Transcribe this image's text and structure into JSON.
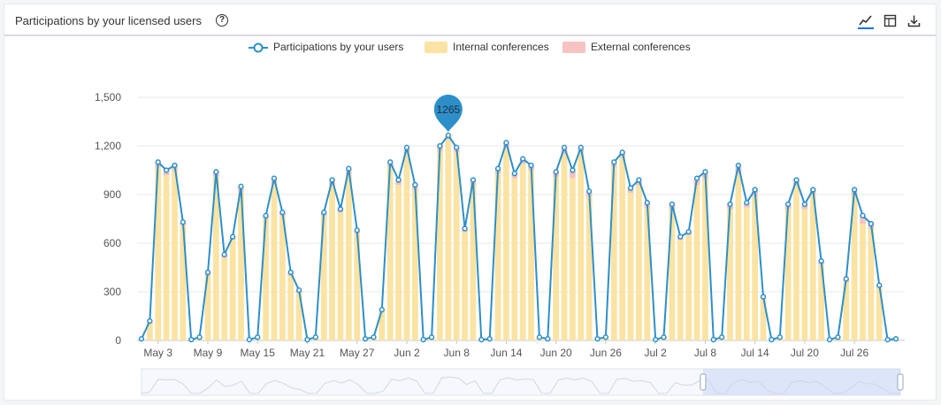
{
  "header": {
    "title": "Participations by your licensed users",
    "help_glyph": "?",
    "tools": [
      "line-chart-icon",
      "table-view-icon",
      "download-icon"
    ]
  },
  "colors": {
    "line": "#2d8fc9",
    "internal": "#fbe3a3",
    "external": "#f7c2c2",
    "grid": "#e6e8eb",
    "tooltip": "#2d8fc9",
    "zoom": "#c9d6f7"
  },
  "tooltip": {
    "value": "1265"
  },
  "zoom_window": {
    "start_fraction": 0.74,
    "end_fraction": 1.0
  },
  "chart_data": {
    "type": "bar",
    "title": "Participations by your licensed users",
    "ylim": [
      0,
      1500
    ],
    "yticks": [
      "0",
      "300",
      "600",
      "900",
      "1,200",
      "1,500"
    ],
    "grid": true,
    "legend_position": "top-center",
    "x_tick_labels": [
      "May 3",
      "May 9",
      "May 15",
      "May 21",
      "May 27",
      "Jun 2",
      "Jun 8",
      "Jun 14",
      "Jun 20",
      "Jun 26",
      "Jul 2",
      "Jul 8",
      "Jul 14",
      "Jul 20",
      "Jul 26"
    ],
    "x_tick_index": [
      2,
      8,
      14,
      20,
      26,
      32,
      38,
      44,
      50,
      56,
      62,
      68,
      74,
      80,
      86
    ],
    "series": [
      {
        "name": "Participations by your users",
        "type": "line",
        "values": [
          10,
          120,
          1100,
          1050,
          1080,
          730,
          5,
          20,
          420,
          1040,
          530,
          640,
          950,
          5,
          20,
          770,
          1000,
          790,
          420,
          310,
          5,
          20,
          790,
          990,
          810,
          1060,
          680,
          10,
          20,
          190,
          1100,
          990,
          1190,
          960,
          5,
          20,
          1200,
          1265,
          1190,
          690,
          990,
          5,
          10,
          1060,
          1220,
          1030,
          1120,
          1080,
          20,
          10,
          1040,
          1190,
          1050,
          1190,
          920,
          10,
          20,
          1100,
          1160,
          940,
          990,
          850,
          5,
          20,
          840,
          640,
          670,
          1000,
          1040,
          5,
          20,
          840,
          1080,
          850,
          930,
          270,
          5,
          20,
          840,
          990,
          840,
          930,
          490,
          5,
          20,
          380,
          930,
          770,
          720,
          340,
          5,
          10
        ]
      },
      {
        "name": "Internal conferences",
        "type": "bar",
        "values": [
          5,
          105,
          1070,
          1020,
          1050,
          710,
          3,
          15,
          400,
          1010,
          510,
          620,
          920,
          3,
          15,
          750,
          970,
          770,
          400,
          295,
          3,
          15,
          770,
          960,
          790,
          1030,
          660,
          8,
          15,
          180,
          1070,
          960,
          1160,
          930,
          3,
          15,
          1170,
          1240,
          1160,
          670,
          960,
          3,
          8,
          1030,
          1190,
          1000,
          1090,
          1050,
          15,
          8,
          1010,
          1150,
          1000,
          1160,
          890,
          8,
          15,
          1070,
          1130,
          910,
          960,
          820,
          3,
          15,
          810,
          620,
          650,
          960,
          1000,
          3,
          15,
          810,
          1030,
          820,
          890,
          255,
          3,
          15,
          810,
          960,
          810,
          900,
          470,
          3,
          15,
          360,
          900,
          720,
          690,
          325,
          3,
          8
        ]
      },
      {
        "name": "External conferences",
        "type": "bar",
        "values": [
          2,
          8,
          25,
          25,
          25,
          15,
          1,
          3,
          15,
          25,
          15,
          15,
          25,
          1,
          3,
          15,
          25,
          15,
          15,
          10,
          1,
          3,
          15,
          25,
          15,
          25,
          15,
          1,
          3,
          8,
          25,
          25,
          25,
          25,
          1,
          3,
          25,
          20,
          25,
          15,
          25,
          1,
          1,
          25,
          25,
          25,
          25,
          25,
          3,
          1,
          25,
          35,
          45,
          25,
          25,
          1,
          3,
          25,
          25,
          25,
          25,
          25,
          1,
          3,
          25,
          15,
          15,
          35,
          35,
          1,
          3,
          25,
          45,
          25,
          35,
          10,
          1,
          3,
          25,
          25,
          25,
          25,
          15,
          1,
          3,
          15,
          25,
          45,
          25,
          10,
          1,
          1
        ]
      }
    ]
  }
}
